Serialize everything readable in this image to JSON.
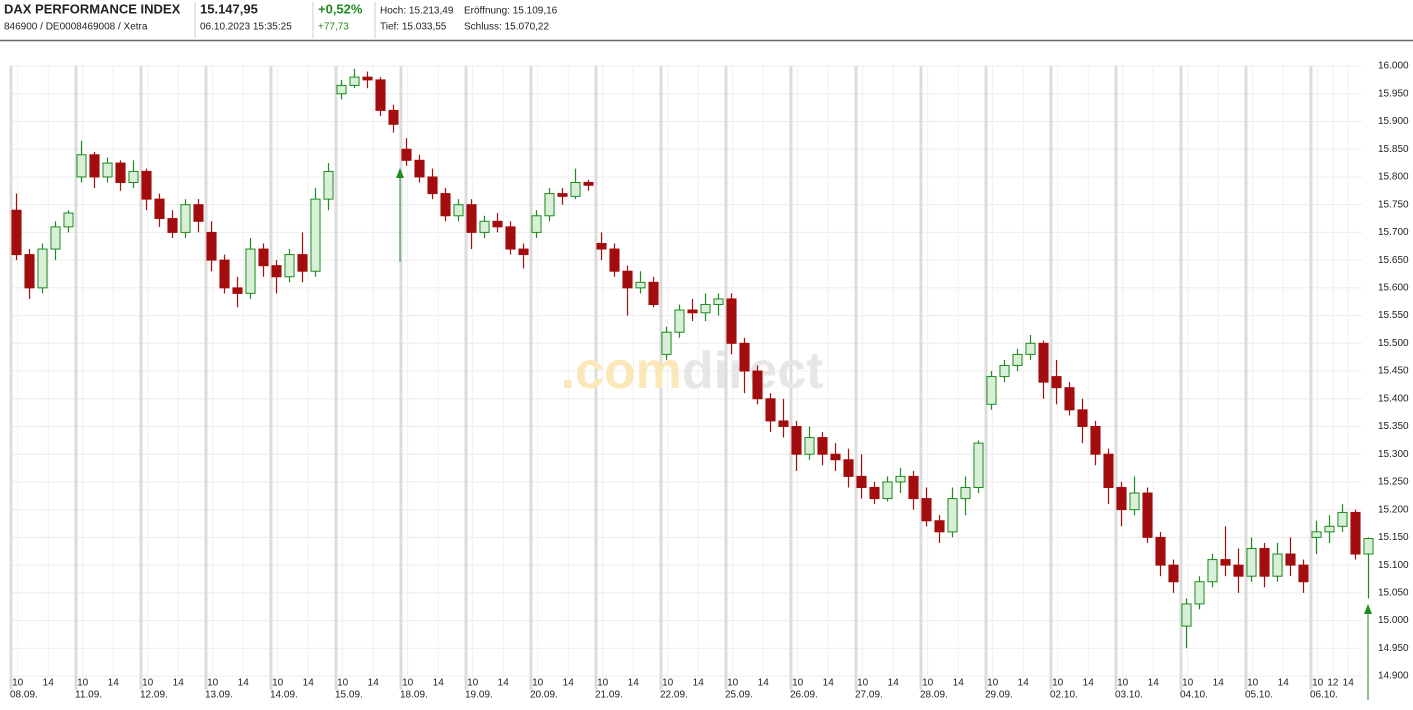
{
  "header": {
    "title": "DAX PERFORMANCE INDEX",
    "ident": "846900 / DE0008469008 / Xetra",
    "price": "15.147,95",
    "timestamp": "06.10.2023 15:35:25",
    "change_pct": "+0,52%",
    "change_abs": "+77,73",
    "high": "Hoch: 15.213,49",
    "open": "Eröffnung: 15.109,16",
    "low": "Tief: 15.033,55",
    "close": "Schluss: 15.070,22"
  },
  "watermark": [
    ".com",
    "direct"
  ],
  "chart_data": {
    "type": "candlestick",
    "categories": [
      "08.09.",
      "11.09.",
      "12.09.",
      "13.09.",
      "14.09.",
      "15.09.",
      "18.09.",
      "19.09.",
      "20.09.",
      "21.09.",
      "22.09.",
      "25.09.",
      "26.09.",
      "27.09.",
      "28.09.",
      "29.09.",
      "02.10.",
      "03.10.",
      "04.10.",
      "05.10.",
      "06.10."
    ],
    "hour_ticks": [
      [
        10,
        14
      ],
      [
        10,
        14
      ],
      [
        10,
        14
      ],
      [
        10,
        14
      ],
      [
        10,
        14
      ],
      [
        10,
        14
      ],
      [
        10,
        14
      ],
      [
        10,
        14
      ],
      [
        10,
        14
      ],
      [
        10,
        14
      ],
      [
        10,
        14
      ],
      [
        10,
        14
      ],
      [
        10,
        14
      ],
      [
        10,
        14
      ],
      [
        10,
        14
      ],
      [
        10,
        14
      ],
      [
        10,
        14
      ],
      [
        10,
        14
      ],
      [
        10,
        14
      ],
      [
        10,
        14
      ],
      [
        10,
        12,
        14
      ]
    ],
    "open": [
      [
        15740,
        15660,
        15600,
        15670,
        15710
      ],
      [
        15800,
        15840,
        15800,
        15825,
        15790
      ],
      [
        15810,
        15760,
        15725,
        15700,
        15750
      ],
      [
        15700,
        15650,
        15600,
        15590,
        15670
      ],
      [
        15640,
        15620,
        15660,
        15630,
        15760
      ],
      [
        15950,
        15965,
        15980,
        15975,
        15920
      ],
      [
        15850,
        15830,
        15800,
        15770,
        15730
      ],
      [
        15750,
        15700,
        15720,
        15710,
        15670
      ],
      [
        15700,
        15730,
        15770,
        15765,
        15790
      ],
      [
        15680,
        15670,
        15630,
        15600,
        15610
      ],
      [
        15480,
        15520,
        15560,
        15555,
        15570
      ],
      [
        15580,
        15500,
        15450,
        15400,
        15360
      ],
      [
        15350,
        15300,
        15330,
        15300,
        15290
      ],
      [
        15260,
        15240,
        15220,
        15250,
        15260
      ],
      [
        15220,
        15180,
        15160,
        15220,
        15240
      ],
      [
        15390,
        15440,
        15460,
        15480,
        15500
      ],
      [
        15440,
        15420,
        15380,
        15350,
        15300
      ],
      [
        15240,
        15200,
        15230,
        15150,
        15100
      ],
      [
        14990,
        15030,
        15070,
        15110,
        15100
      ],
      [
        15080,
        15130,
        15080,
        15120,
        15100
      ],
      [
        15150,
        15160,
        15170,
        15195,
        15120
      ]
    ],
    "high": [
      [
        15770,
        15670,
        15680,
        15720,
        15740
      ],
      [
        15865,
        15845,
        15835,
        15830,
        15830
      ],
      [
        15815,
        15770,
        15740,
        15760,
        15760
      ],
      [
        15720,
        15660,
        15620,
        15690,
        15680
      ],
      [
        15650,
        15670,
        15700,
        15780,
        15825
      ],
      [
        15975,
        15995,
        15990,
        15980,
        15930
      ],
      [
        15870,
        15840,
        15815,
        15780,
        15760
      ],
      [
        15760,
        15730,
        15735,
        15720,
        15680
      ],
      [
        15740,
        15780,
        15780,
        15815,
        15795
      ],
      [
        15700,
        15680,
        15640,
        15630,
        15620
      ],
      [
        15530,
        15570,
        15580,
        15590,
        15590
      ],
      [
        15590,
        15510,
        15460,
        15410,
        15400
      ],
      [
        15360,
        15350,
        15340,
        15320,
        15310
      ],
      [
        15300,
        15250,
        15260,
        15275,
        15270
      ],
      [
        15240,
        15190,
        15240,
        15260,
        15325
      ],
      [
        15450,
        15470,
        15490,
        15515,
        15505
      ],
      [
        15470,
        15430,
        15400,
        15360,
        15310
      ],
      [
        15250,
        15260,
        15240,
        15160,
        15110
      ],
      [
        15040,
        15080,
        15120,
        15170,
        15130
      ],
      [
        15150,
        15140,
        15140,
        15150,
        15110
      ],
      [
        15180,
        15190,
        15210,
        15200,
        15150
      ]
    ],
    "low": [
      [
        15650,
        15580,
        15590,
        15650,
        15700
      ],
      [
        15790,
        15780,
        15790,
        15775,
        15780
      ],
      [
        15740,
        15710,
        15690,
        15690,
        15700
      ],
      [
        15630,
        15590,
        15565,
        15580,
        15620
      ],
      [
        15590,
        15610,
        15610,
        15620,
        15740
      ],
      [
        15940,
        15960,
        15960,
        15910,
        15880
      ],
      [
        15820,
        15790,
        15760,
        15720,
        15720
      ],
      [
        15670,
        15690,
        15700,
        15660,
        15635
      ],
      [
        15690,
        15720,
        15750,
        15760,
        15775
      ],
      [
        15650,
        15620,
        15550,
        15590,
        15565
      ],
      [
        15470,
        15510,
        15540,
        15540,
        15550
      ],
      [
        15480,
        15410,
        15390,
        15340,
        15330
      ],
      [
        15270,
        15290,
        15280,
        15270,
        15240
      ],
      [
        15220,
        15210,
        15215,
        15230,
        15200
      ],
      [
        15170,
        15140,
        15150,
        15190,
        15230
      ],
      [
        15380,
        15430,
        15450,
        15470,
        15400
      ],
      [
        15390,
        15370,
        15320,
        15280,
        15210
      ],
      [
        15170,
        15190,
        15140,
        15080,
        15050
      ],
      [
        14950,
        15020,
        15060,
        15080,
        15050
      ],
      [
        15070,
        15060,
        15070,
        15080,
        15050
      ],
      [
        15120,
        15140,
        15160,
        15110,
        15040
      ]
    ],
    "close": [
      [
        15660,
        15600,
        15670,
        15710,
        15735
      ],
      [
        15840,
        15800,
        15825,
        15790,
        15810
      ],
      [
        15760,
        15725,
        15700,
        15750,
        15720
      ],
      [
        15650,
        15600,
        15590,
        15670,
        15640
      ],
      [
        15620,
        15660,
        15630,
        15760,
        15810
      ],
      [
        15965,
        15980,
        15975,
        15920,
        15895
      ],
      [
        15830,
        15800,
        15770,
        15730,
        15750
      ],
      [
        15700,
        15720,
        15710,
        15670,
        15660
      ],
      [
        15730,
        15770,
        15765,
        15790,
        15785
      ],
      [
        15670,
        15630,
        15600,
        15610,
        15570
      ],
      [
        15520,
        15560,
        15555,
        15570,
        15580
      ],
      [
        15500,
        15450,
        15400,
        15360,
        15350
      ],
      [
        15300,
        15330,
        15300,
        15290,
        15260
      ],
      [
        15240,
        15220,
        15250,
        15260,
        15220
      ],
      [
        15180,
        15160,
        15220,
        15240,
        15320
      ],
      [
        15440,
        15460,
        15480,
        15500,
        15430
      ],
      [
        15420,
        15380,
        15350,
        15300,
        15240
      ],
      [
        15200,
        15230,
        15150,
        15100,
        15070
      ],
      [
        15030,
        15070,
        15110,
        15100,
        15080
      ],
      [
        15130,
        15080,
        15120,
        15100,
        15070
      ],
      [
        15160,
        15170,
        15195,
        15120,
        15148
      ]
    ],
    "colors": {
      "up": "#1f8a1f",
      "down": "#a30d0d"
    },
    "ylim": [
      14860,
      16010
    ],
    "yticks": [
      {
        "value": 14900,
        "label": "14.900"
      },
      {
        "value": 14950,
        "label": "14.950"
      },
      {
        "value": 15000,
        "label": "15.000"
      },
      {
        "value": 15050,
        "label": "15.050"
      },
      {
        "value": 15100,
        "label": "15.100"
      },
      {
        "value": 15150,
        "label": "15.150"
      },
      {
        "value": 15200,
        "label": "15.200"
      },
      {
        "value": 15250,
        "label": "15.250"
      },
      {
        "value": 15300,
        "label": "15.300"
      },
      {
        "value": 15350,
        "label": "15.350"
      },
      {
        "value": 15400,
        "label": "15.400"
      },
      {
        "value": 15450,
        "label": "15.450"
      },
      {
        "value": 15500,
        "label": "15.500"
      },
      {
        "value": 15550,
        "label": "15.550"
      },
      {
        "value": 15600,
        "label": "15.600"
      },
      {
        "value": 15650,
        "label": "15.650"
      },
      {
        "value": 15700,
        "label": "15.700"
      },
      {
        "value": 15750,
        "label": "15.750"
      },
      {
        "value": 15800,
        "label": "15.800"
      },
      {
        "value": 15850,
        "label": "15.850"
      },
      {
        "value": 15900,
        "label": "15.900"
      },
      {
        "value": 15950,
        "label": "15.950"
      },
      {
        "value": 16000,
        "label": "16.000"
      }
    ],
    "grid": true
  }
}
